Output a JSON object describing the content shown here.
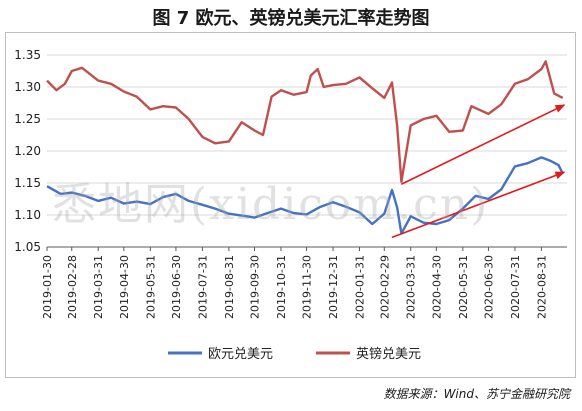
{
  "title": "图 7  欧元、英镑兑美元汇率走势图",
  "source": "数据来源：Wind、苏宁金融研究院",
  "watermark": "悉地网(xidicom.cn)",
  "colors": {
    "eur": "#4472c4",
    "gbp": "#c0504d",
    "arrow": "#e31a1c",
    "grid": "#d9d9d9",
    "axis": "#595959"
  },
  "chart_data": {
    "type": "line",
    "ylim": [
      1.05,
      1.35
    ],
    "yticks": [
      "1.05",
      "1.10",
      "1.15",
      "1.20",
      "1.25",
      "1.30",
      "1.35"
    ],
    "xticks": [
      "2019-01-30",
      "2019-02-28",
      "2019-03-31",
      "2019-04-30",
      "2019-05-31",
      "2019-06-30",
      "2019-07-31",
      "2019-08-31",
      "2019-09-30",
      "2019-10-31",
      "2019-11-30",
      "2019-12-31",
      "2020-01-31",
      "2020-02-29",
      "2020-03-31",
      "2020-04-30",
      "2020-05-31",
      "2020-06-30",
      "2020-07-31",
      "2020-08-31"
    ],
    "grid": "horizontal",
    "legend_position": "bottom",
    "series": [
      {
        "name": "欧元兑美元",
        "color": "#4472c4",
        "x": [
          "2019-01-30",
          "2019-02-15",
          "2019-02-28",
          "2019-03-15",
          "2019-03-31",
          "2019-04-15",
          "2019-04-30",
          "2019-05-15",
          "2019-05-31",
          "2019-06-15",
          "2019-06-30",
          "2019-07-15",
          "2019-07-31",
          "2019-08-15",
          "2019-08-31",
          "2019-09-15",
          "2019-09-30",
          "2019-10-15",
          "2019-10-31",
          "2019-11-15",
          "2019-11-30",
          "2019-12-15",
          "2019-12-31",
          "2020-01-15",
          "2020-01-31",
          "2020-02-15",
          "2020-02-29",
          "2020-03-09",
          "2020-03-15",
          "2020-03-20",
          "2020-03-31",
          "2020-04-15",
          "2020-04-30",
          "2020-05-15",
          "2020-05-31",
          "2020-06-15",
          "2020-06-30",
          "2020-07-15",
          "2020-07-31",
          "2020-08-15",
          "2020-08-31",
          "2020-09-10",
          "2020-09-20",
          "2020-09-25"
        ],
        "values": [
          1.145,
          1.133,
          1.135,
          1.13,
          1.122,
          1.127,
          1.118,
          1.121,
          1.117,
          1.128,
          1.133,
          1.122,
          1.116,
          1.11,
          1.102,
          1.099,
          1.096,
          1.103,
          1.11,
          1.103,
          1.101,
          1.112,
          1.12,
          1.113,
          1.104,
          1.086,
          1.102,
          1.139,
          1.112,
          1.071,
          1.098,
          1.088,
          1.086,
          1.092,
          1.11,
          1.13,
          1.125,
          1.14,
          1.176,
          1.181,
          1.19,
          1.185,
          1.178,
          1.165
        ]
      },
      {
        "name": "英镑兑美元",
        "color": "#c0504d",
        "x": [
          "2019-01-30",
          "2019-02-10",
          "2019-02-20",
          "2019-02-28",
          "2019-03-12",
          "2019-03-31",
          "2019-04-15",
          "2019-04-30",
          "2019-05-15",
          "2019-05-31",
          "2019-06-15",
          "2019-06-30",
          "2019-07-15",
          "2019-07-31",
          "2019-08-15",
          "2019-08-31",
          "2019-09-15",
          "2019-09-30",
          "2019-10-10",
          "2019-10-20",
          "2019-10-31",
          "2019-11-15",
          "2019-11-30",
          "2019-12-05",
          "2019-12-13",
          "2019-12-20",
          "2019-12-31",
          "2020-01-15",
          "2020-01-31",
          "2020-02-15",
          "2020-02-29",
          "2020-03-09",
          "2020-03-15",
          "2020-03-20",
          "2020-03-31",
          "2020-04-15",
          "2020-04-30",
          "2020-05-15",
          "2020-05-31",
          "2020-06-10",
          "2020-06-30",
          "2020-07-15",
          "2020-07-31",
          "2020-08-15",
          "2020-08-31",
          "2020-09-05",
          "2020-09-15",
          "2020-09-25"
        ],
        "values": [
          1.31,
          1.295,
          1.305,
          1.325,
          1.33,
          1.31,
          1.305,
          1.293,
          1.285,
          1.265,
          1.27,
          1.268,
          1.25,
          1.222,
          1.212,
          1.215,
          1.245,
          1.232,
          1.225,
          1.285,
          1.295,
          1.288,
          1.292,
          1.318,
          1.328,
          1.3,
          1.303,
          1.305,
          1.315,
          1.298,
          1.283,
          1.307,
          1.24,
          1.152,
          1.24,
          1.25,
          1.255,
          1.23,
          1.232,
          1.27,
          1.258,
          1.273,
          1.305,
          1.312,
          1.328,
          1.34,
          1.29,
          1.283
        ]
      }
    ],
    "annotations": [
      {
        "type": "arrow",
        "series": "英镑兑美元",
        "from": {
          "x": "2020-03-20",
          "y": 1.148
        },
        "to": {
          "x": "2020-09-27",
          "y": 1.272
        }
      },
      {
        "type": "arrow",
        "series": "欧元兑美元",
        "from": {
          "x": "2020-03-09",
          "y": 1.065
        },
        "to": {
          "x": "2020-09-27",
          "y": 1.167
        }
      }
    ]
  }
}
